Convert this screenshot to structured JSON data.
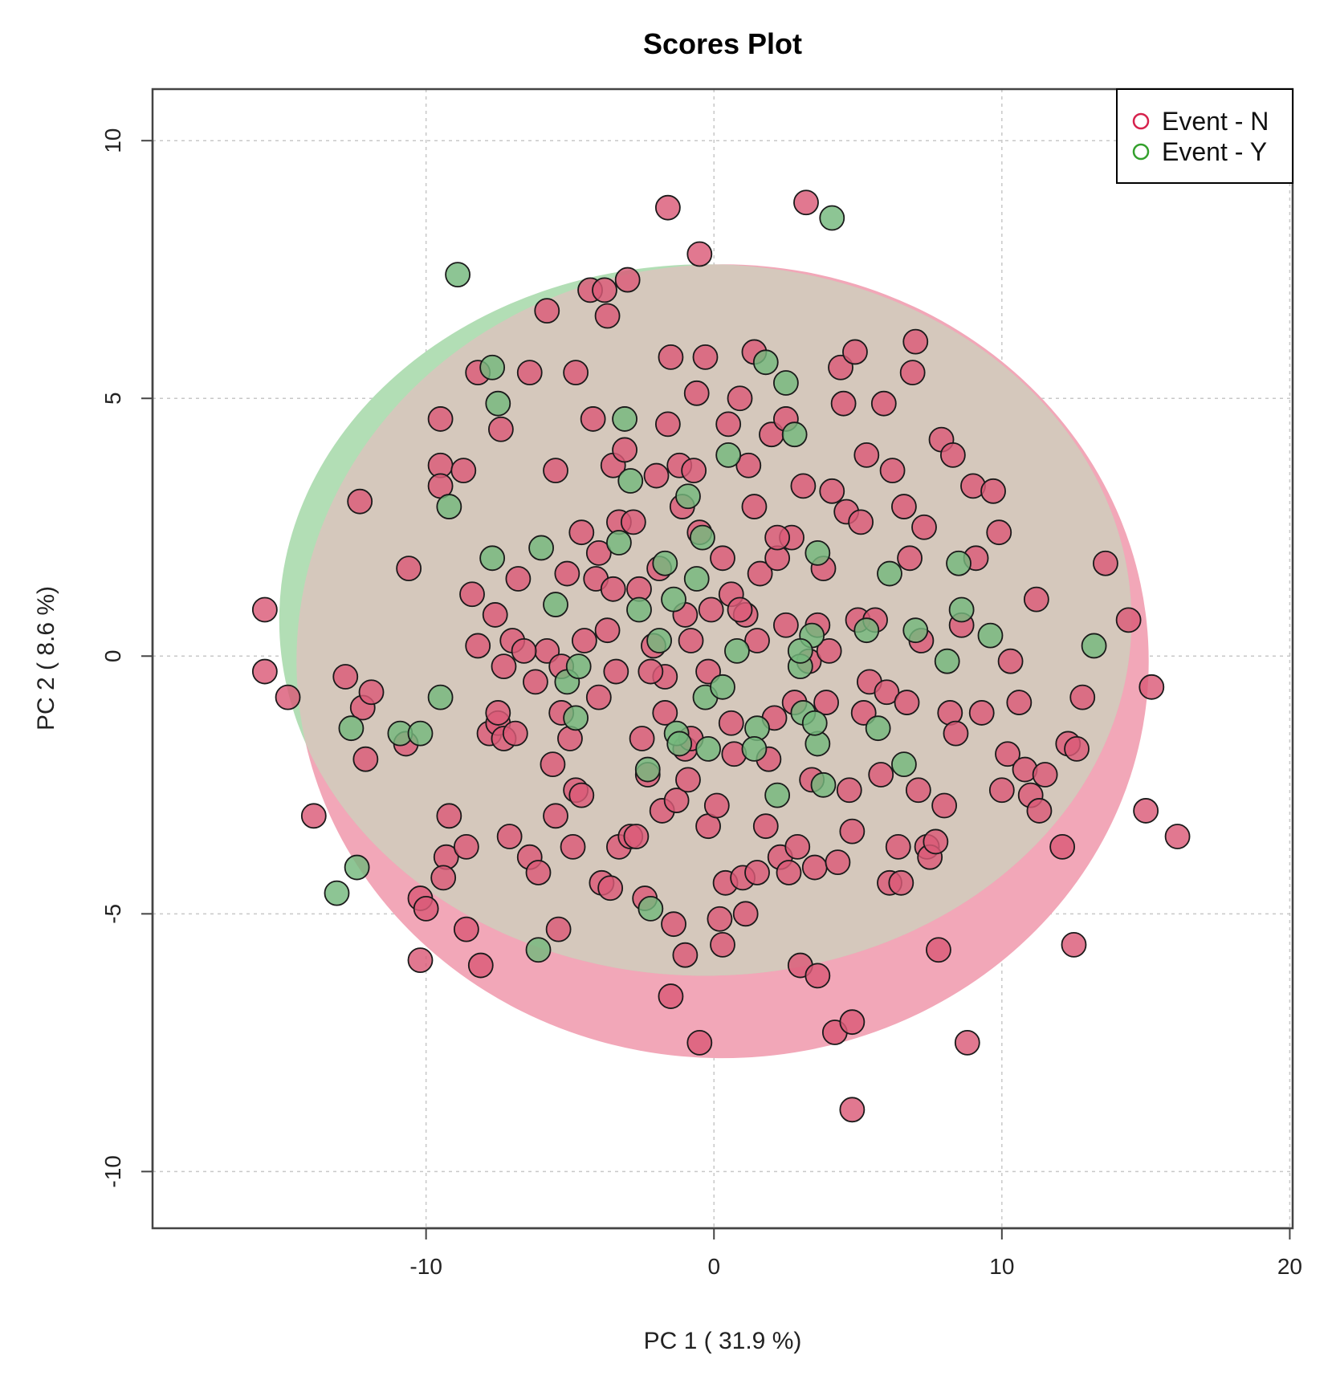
{
  "chart_data": {
    "type": "scatter",
    "title": "Scores Plot",
    "xlabel": "PC 1 ( 31.9 %)",
    "ylabel": "PC 2 ( 8.6 %)",
    "xlim": [
      -19.5,
      20.1
    ],
    "ylim": [
      -11.1,
      11
    ],
    "xticks": [
      -10,
      0,
      10,
      20
    ],
    "yticks": [
      -10,
      -5,
      0,
      5,
      10
    ],
    "xtick_labels": [
      "-10",
      "0",
      "10",
      "20"
    ],
    "ytick_labels": [
      "-10",
      "-5",
      "0",
      "5",
      "10"
    ],
    "grid": true,
    "legend_position": "top-right",
    "colors": {
      "event_n_stroke": "#d6214c",
      "event_y_stroke": "#33a02c",
      "event_n_fill": "#db5a77",
      "event_y_fill": "#74b87d",
      "ellipse_n": "#f2a7b8",
      "ellipse_y": "#b2deb5",
      "overlap": "#d5c8bc",
      "grid": "#c8c8c8"
    },
    "ellipses": [
      {
        "name": "Event - N",
        "center": [
          0.3,
          -0.1
        ],
        "radius": [
          14.8,
          7.7
        ]
      },
      {
        "name": "Event - Y",
        "center": [
          -0.3,
          0.7
        ],
        "radius": [
          14.8,
          6.9
        ]
      }
    ],
    "series": [
      {
        "name": "Event - N",
        "points": [
          [
            -15.6,
            0.9
          ],
          [
            -15.6,
            -0.3
          ],
          [
            -14.8,
            -0.8
          ],
          [
            -13.9,
            -3.1
          ],
          [
            -12.8,
            -0.4
          ],
          [
            -12.3,
            3
          ],
          [
            -12.2,
            -1
          ],
          [
            -12.1,
            -2
          ],
          [
            -11.9,
            -0.7
          ],
          [
            -10.6,
            1.7
          ],
          [
            -10.7,
            -1.7
          ],
          [
            -10.2,
            -4.7
          ],
          [
            -10.0,
            -4.9
          ],
          [
            -10.2,
            -5.9
          ],
          [
            -9.5,
            4.6
          ],
          [
            -9.5,
            3.7
          ],
          [
            -9.5,
            3.3
          ],
          [
            -9.3,
            -3.9
          ],
          [
            -9.4,
            -4.3
          ],
          [
            -9.2,
            -3.1
          ],
          [
            -8.7,
            3.6
          ],
          [
            -8.6,
            -5.3
          ],
          [
            -8.6,
            -3.7
          ],
          [
            -8.4,
            1.2
          ],
          [
            -8.2,
            5.5
          ],
          [
            -8.2,
            0.2
          ],
          [
            -8.1,
            -6
          ],
          [
            -7.8,
            -1.5
          ],
          [
            -7.5,
            -1.3
          ],
          [
            -7.4,
            4.4
          ],
          [
            -7.3,
            -1.6
          ],
          [
            -7.0,
            0.3
          ],
          [
            -6.9,
            -1.5
          ],
          [
            -7.5,
            -1.1
          ],
          [
            -7.6,
            0.8
          ],
          [
            -7.3,
            -0.2
          ],
          [
            -7.1,
            -3.5
          ],
          [
            -6.8,
            1.5
          ],
          [
            -6.4,
            5.5
          ],
          [
            -6.4,
            -3.9
          ],
          [
            -6.2,
            -0.5
          ],
          [
            -6.1,
            -4.2
          ],
          [
            -5.8,
            6.7
          ],
          [
            -5.8,
            0.1
          ],
          [
            -5.6,
            -2.1
          ],
          [
            -5.5,
            3.6
          ],
          [
            -5.5,
            -3.1
          ],
          [
            -5.4,
            -5.3
          ],
          [
            -5.3,
            -0.2
          ],
          [
            -5.3,
            -1.1
          ],
          [
            -5.1,
            1.6
          ],
          [
            -5.0,
            -1.6
          ],
          [
            -4.9,
            -3.7
          ],
          [
            -4.8,
            5.5
          ],
          [
            -4.8,
            -2.6
          ],
          [
            -4.6,
            2.4
          ],
          [
            -4.6,
            -2.7
          ],
          [
            -4.3,
            7.1
          ],
          [
            -4.2,
            4.6
          ],
          [
            -4.1,
            1.5
          ],
          [
            -4.0,
            2
          ],
          [
            -4.0,
            -0.8
          ],
          [
            -3.9,
            -4.4
          ],
          [
            -3.8,
            7.1
          ],
          [
            -3.7,
            6.6
          ],
          [
            -3.6,
            -4.5
          ],
          [
            -3.5,
            3.7
          ],
          [
            -3.5,
            1.3
          ],
          [
            -3.4,
            -0.3
          ],
          [
            -3.3,
            2.6
          ],
          [
            -3.3,
            -3.7
          ],
          [
            -3.1,
            4
          ],
          [
            -3.0,
            7.3
          ],
          [
            -2.9,
            -3.5
          ],
          [
            -2.8,
            2.6
          ],
          [
            -2.7,
            -3.5
          ],
          [
            -2.6,
            1.3
          ],
          [
            -2.5,
            -1.6
          ],
          [
            -2.4,
            -4.7
          ],
          [
            -2.3,
            -2.3
          ],
          [
            -2.1,
            0.2
          ],
          [
            -2.0,
            3.5
          ],
          [
            -1.9,
            1.7
          ],
          [
            -1.8,
            -3
          ],
          [
            -1.7,
            -0.4
          ],
          [
            -1.6,
            4.5
          ],
          [
            -1.6,
            8.7
          ],
          [
            -1.5,
            5.8
          ],
          [
            -1.5,
            -6.6
          ],
          [
            -1.4,
            -5.2
          ],
          [
            -1.3,
            -2.8
          ],
          [
            -1.2,
            3.7
          ],
          [
            -1.1,
            2.9
          ],
          [
            -1.0,
            -1.8
          ],
          [
            -1.0,
            -5.8
          ],
          [
            -0.9,
            -2.4
          ],
          [
            -0.8,
            0.3
          ],
          [
            -0.7,
            3.6
          ],
          [
            -0.6,
            5.1
          ],
          [
            -0.5,
            7.8
          ],
          [
            -0.5,
            -7.5
          ],
          [
            -0.3,
            5.8
          ],
          [
            -0.2,
            -3.3
          ],
          [
            -0.1,
            0.9
          ],
          [
            0.1,
            -2.9
          ],
          [
            0.2,
            -5.1
          ],
          [
            0.3,
            -5.6
          ],
          [
            0.4,
            -4.4
          ],
          [
            0.5,
            4.5
          ],
          [
            0.6,
            1.2
          ],
          [
            0.7,
            -1.9
          ],
          [
            0.9,
            5
          ],
          [
            1.0,
            -4.3
          ],
          [
            1.1,
            -5
          ],
          [
            1.1,
            0.8
          ],
          [
            1.2,
            3.7
          ],
          [
            1.4,
            5.9
          ],
          [
            1.4,
            2.9
          ],
          [
            1.5,
            -4.2
          ],
          [
            1.6,
            1.6
          ],
          [
            1.8,
            -3.3
          ],
          [
            2.0,
            4.3
          ],
          [
            2.1,
            -1.2
          ],
          [
            2.2,
            1.9
          ],
          [
            2.3,
            -3.9
          ],
          [
            2.5,
            4.6
          ],
          [
            2.6,
            -4.2
          ],
          [
            2.7,
            2.3
          ],
          [
            2.8,
            -0.9
          ],
          [
            2.9,
            -3.7
          ],
          [
            3.0,
            -6
          ],
          [
            3.1,
            3.3
          ],
          [
            3.2,
            8.8
          ],
          [
            3.3,
            -0.1
          ],
          [
            3.4,
            -2.4
          ],
          [
            3.5,
            -4.1
          ],
          [
            3.6,
            -6.2
          ],
          [
            3.8,
            1.7
          ],
          [
            3.9,
            -0.9
          ],
          [
            4.0,
            0.1
          ],
          [
            4.1,
            3.2
          ],
          [
            4.2,
            -7.3
          ],
          [
            4.3,
            -4
          ],
          [
            4.4,
            5.6
          ],
          [
            4.5,
            4.9
          ],
          [
            4.6,
            2.8
          ],
          [
            4.7,
            -2.6
          ],
          [
            4.8,
            -3.4
          ],
          [
            4.8,
            -7.1
          ],
          [
            4.8,
            -8.8
          ],
          [
            4.9,
            5.9
          ],
          [
            5.0,
            0.7
          ],
          [
            5.1,
            2.6
          ],
          [
            5.3,
            3.9
          ],
          [
            5.4,
            -0.5
          ],
          [
            5.6,
            0.7
          ],
          [
            5.8,
            -2.3
          ],
          [
            5.9,
            4.9
          ],
          [
            6.0,
            -0.7
          ],
          [
            6.1,
            -4.4
          ],
          [
            6.2,
            3.6
          ],
          [
            6.4,
            -3.7
          ],
          [
            6.5,
            -4.4
          ],
          [
            6.6,
            2.9
          ],
          [
            6.7,
            -0.9
          ],
          [
            6.9,
            5.5
          ],
          [
            7.0,
            6.1
          ],
          [
            7.1,
            -2.6
          ],
          [
            7.2,
            0.3
          ],
          [
            7.3,
            2.5
          ],
          [
            7.4,
            -3.7
          ],
          [
            7.5,
            -3.9
          ],
          [
            7.7,
            -3.6
          ],
          [
            7.8,
            -5.7
          ],
          [
            7.9,
            4.2
          ],
          [
            8.0,
            -2.9
          ],
          [
            8.2,
            -1.1
          ],
          [
            8.3,
            3.9
          ],
          [
            8.4,
            -1.5
          ],
          [
            8.6,
            0.6
          ],
          [
            8.8,
            -7.5
          ],
          [
            9.0,
            3.3
          ],
          [
            9.1,
            1.9
          ],
          [
            9.3,
            -1.1
          ],
          [
            9.7,
            3.2
          ],
          [
            9.9,
            2.4
          ],
          [
            10.0,
            -2.6
          ],
          [
            10.2,
            -1.9
          ],
          [
            10.3,
            -0.1
          ],
          [
            10.6,
            -0.9
          ],
          [
            10.8,
            -2.2
          ],
          [
            11.0,
            -2.7
          ],
          [
            11.2,
            1.1
          ],
          [
            11.3,
            -3
          ],
          [
            11.5,
            -2.3
          ],
          [
            12.1,
            -3.7
          ],
          [
            12.3,
            -1.7
          ],
          [
            12.5,
            -5.6
          ],
          [
            12.6,
            -1.8
          ],
          [
            12.8,
            -0.8
          ],
          [
            13.6,
            1.8
          ],
          [
            14.4,
            0.7
          ],
          [
            15.0,
            -3
          ],
          [
            15.2,
            -0.6
          ],
          [
            16.1,
            -3.5
          ],
          [
            -1.7,
            -1.1
          ],
          [
            0.6,
            -1.3
          ],
          [
            -0.2,
            -0.3
          ],
          [
            1.5,
            0.3
          ],
          [
            2.5,
            0.6
          ],
          [
            -2.2,
            -0.3
          ],
          [
            0.3,
            1.9
          ],
          [
            -0.5,
            2.4
          ],
          [
            3.6,
            0.6
          ],
          [
            -3.7,
            0.5
          ],
          [
            1.9,
            -2
          ],
          [
            -1.0,
            0.8
          ],
          [
            0.9,
            0.9
          ],
          [
            -4.5,
            0.3
          ],
          [
            5.2,
            -1.1
          ],
          [
            6.8,
            1.9
          ],
          [
            -6.6,
            0.1
          ],
          [
            2.2,
            2.3
          ],
          [
            -0.8,
            -1.6
          ]
        ]
      },
      {
        "name": "Event - Y",
        "points": [
          [
            -8.9,
            7.4
          ],
          [
            -7.7,
            5.6
          ],
          [
            -7.5,
            4.9
          ],
          [
            -9.2,
            2.9
          ],
          [
            -7.7,
            1.9
          ],
          [
            -6.0,
            2.1
          ],
          [
            -5.5,
            1
          ],
          [
            -5.1,
            -0.5
          ],
          [
            -4.8,
            -1.2
          ],
          [
            -3.3,
            2.2
          ],
          [
            -3.1,
            4.6
          ],
          [
            -2.9,
            3.4
          ],
          [
            -2.6,
            0.9
          ],
          [
            -1.9,
            0.3
          ],
          [
            -1.7,
            1.8
          ],
          [
            -1.4,
            1.1
          ],
          [
            -1.3,
            -1.5
          ],
          [
            -1.2,
            -1.7
          ],
          [
            -0.9,
            3.1
          ],
          [
            -0.6,
            1.5
          ],
          [
            -0.4,
            2.3
          ],
          [
            -0.3,
            -0.8
          ],
          [
            -0.2,
            -1.8
          ],
          [
            0.3,
            -0.6
          ],
          [
            0.5,
            3.9
          ],
          [
            0.8,
            0.1
          ],
          [
            1.5,
            -1.4
          ],
          [
            1.8,
            5.7
          ],
          [
            2.2,
            -2.7
          ],
          [
            2.5,
            5.3
          ],
          [
            2.8,
            4.3
          ],
          [
            3.0,
            -0.2
          ],
          [
            3.1,
            -1.1
          ],
          [
            3.4,
            0.4
          ],
          [
            3.6,
            2
          ],
          [
            3.8,
            -2.5
          ],
          [
            3.6,
            -1.7
          ],
          [
            4.1,
            8.5
          ],
          [
            5.3,
            0.5
          ],
          [
            5.7,
            -1.4
          ],
          [
            6.1,
            1.6
          ],
          [
            6.6,
            -2.1
          ],
          [
            7.0,
            0.5
          ],
          [
            8.1,
            -0.1
          ],
          [
            8.5,
            1.8
          ],
          [
            8.6,
            0.9
          ],
          [
            9.6,
            0.4
          ],
          [
            13.2,
            0.2
          ],
          [
            -10.9,
            -1.5
          ],
          [
            -10.2,
            -1.5
          ],
          [
            -9.5,
            -0.8
          ],
          [
            -12.4,
            -4.1
          ],
          [
            -13.1,
            -4.6
          ],
          [
            -12.6,
            -1.4
          ],
          [
            -6.1,
            -5.7
          ],
          [
            -2.2,
            -4.9
          ],
          [
            -4.7,
            -0.2
          ],
          [
            3.0,
            0.1
          ],
          [
            -2.3,
            -2.2
          ],
          [
            1.4,
            -1.8
          ],
          [
            3.5,
            -1.3
          ]
        ]
      }
    ],
    "legend": [
      "Event - N",
      "Event - Y"
    ]
  }
}
